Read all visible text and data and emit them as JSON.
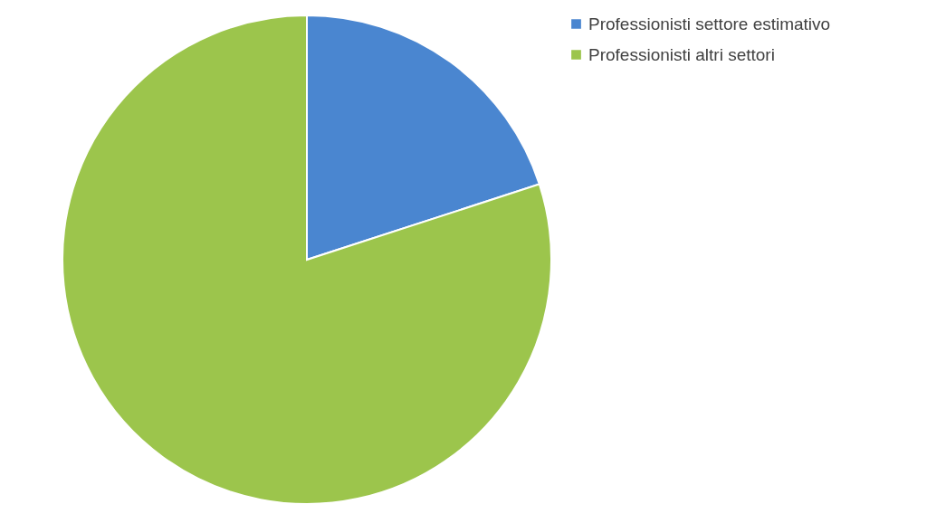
{
  "chart_data": {
    "type": "pie",
    "categories": [
      "Professionisti settore estimativo",
      "Professionisti altri settori"
    ],
    "values": [
      20,
      80
    ],
    "colors": [
      "#4a86d0",
      "#9cc54c"
    ],
    "legend": "right"
  }
}
